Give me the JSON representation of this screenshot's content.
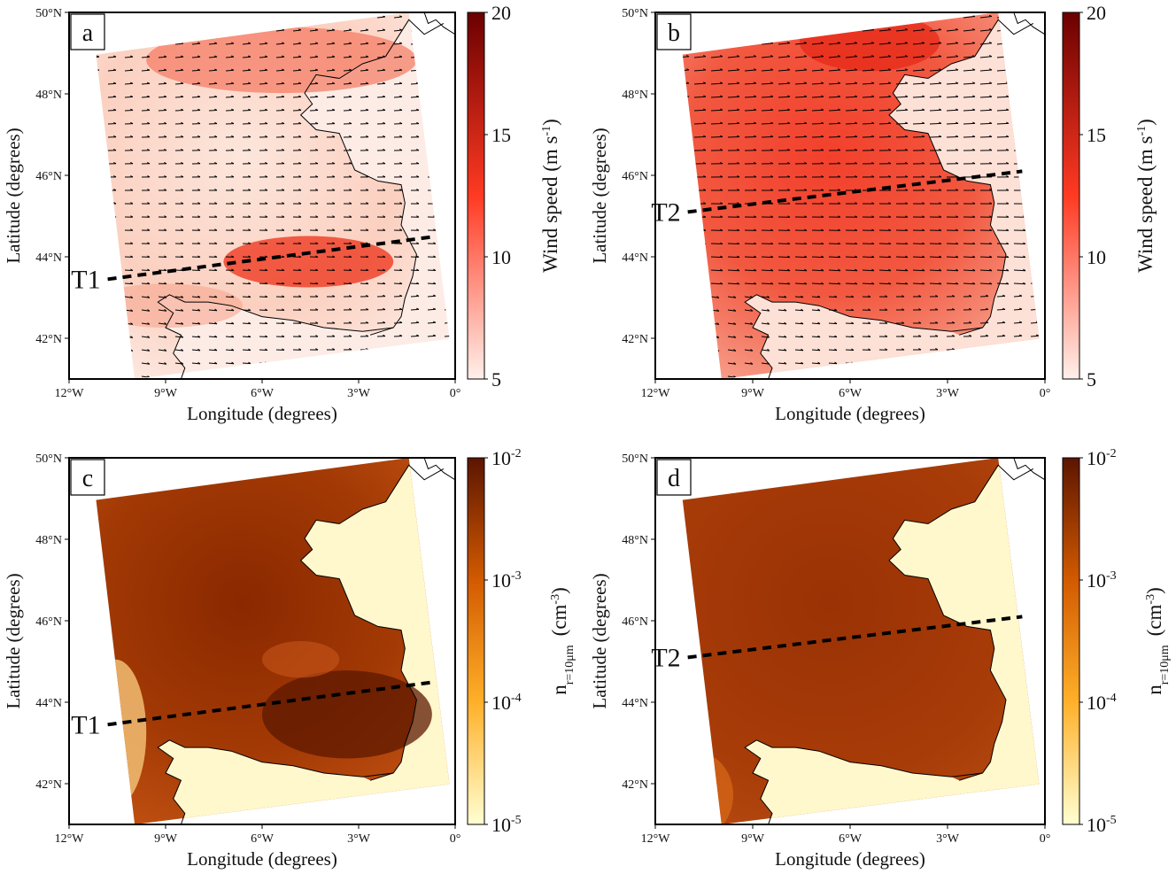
{
  "chart_data": [
    {
      "panel": "a",
      "type": "heatmap",
      "field": "wind",
      "xlabel": "Longitude (degrees)",
      "ylabel": "Latitude (degrees)",
      "xticks": [
        "12°W",
        "9°W",
        "6°W",
        "3°W",
        "0°"
      ],
      "yticks": [
        "42°N",
        "44°N",
        "46°N",
        "48°N",
        "50°N"
      ],
      "xlim": [
        -12,
        0
      ],
      "ylim": [
        41,
        50
      ],
      "colorbar": {
        "label": "Wind speed (m s",
        "label_sup": "-1",
        "label_close": ")",
        "scale": "linear",
        "range": [
          5,
          20
        ],
        "ticks": [
          "5",
          "10",
          "15",
          "20"
        ],
        "colors": [
          "#fff0ea",
          "#ff3a22",
          "#6b0000"
        ]
      },
      "transect": {
        "name": "T1",
        "start": [
          -10.8,
          43.45
        ],
        "end": [
          -0.6,
          44.5
        ]
      },
      "wind_jet_center": [
        -4,
        44
      ],
      "wind_direction": "westerly"
    },
    {
      "panel": "b",
      "type": "heatmap",
      "field": "wind",
      "xlabel": "Longitude (degrees)",
      "ylabel": "Latitude (degrees)",
      "xticks": [
        "12°W",
        "9°W",
        "6°W",
        "3°W",
        "0°"
      ],
      "yticks": [
        "42°N",
        "44°N",
        "46°N",
        "48°N",
        "50°N"
      ],
      "xlim": [
        -12,
        0
      ],
      "ylim": [
        41,
        50
      ],
      "colorbar": {
        "label": "Wind speed (m s",
        "label_sup": "-1",
        "label_close": ")",
        "scale": "linear",
        "range": [
          5,
          20
        ],
        "ticks": [
          "5",
          "10",
          "15",
          "20"
        ],
        "colors": [
          "#fff0ea",
          "#ff3a22",
          "#6b0000"
        ]
      },
      "transect": {
        "name": "T2",
        "start": [
          -11.0,
          45.1
        ],
        "end": [
          -0.7,
          46.1
        ]
      },
      "wind_direction": "westerly"
    },
    {
      "panel": "c",
      "type": "heatmap",
      "field": "aerosol",
      "xlabel": "Longitude (degrees)",
      "ylabel": "Latitude (degrees)",
      "xticks": [
        "12°W",
        "9°W",
        "6°W",
        "3°W",
        "0°"
      ],
      "yticks": [
        "42°N",
        "44°N",
        "46°N",
        "48°N",
        "50°N"
      ],
      "xlim": [
        -12,
        0
      ],
      "ylim": [
        41,
        50
      ],
      "colorbar": {
        "label": "n",
        "label_sub": "r=10μm",
        "unit": "(cm",
        "unit_sup": "-3",
        "unit_close": ")",
        "scale": "log",
        "range": [
          "10-5",
          "10-2"
        ],
        "ticks": [
          [
            "10",
            "-5"
          ],
          [
            "10",
            "-4"
          ],
          [
            "10",
            "-3"
          ],
          [
            "10",
            "-2"
          ]
        ],
        "colors": [
          "#ffffd2",
          "#ffb02a",
          "#d25a00",
          "#5c1500"
        ]
      },
      "transect": {
        "name": "T1",
        "start": [
          -10.8,
          43.45
        ],
        "end": [
          -0.6,
          44.5
        ]
      }
    },
    {
      "panel": "d",
      "type": "heatmap",
      "field": "aerosol",
      "xlabel": "Longitude (degrees)",
      "ylabel": "Latitude (degrees)",
      "xticks": [
        "12°W",
        "9°W",
        "6°W",
        "3°W",
        "0°"
      ],
      "yticks": [
        "42°N",
        "44°N",
        "46°N",
        "48°N",
        "50°N"
      ],
      "xlim": [
        -12,
        0
      ],
      "ylim": [
        41,
        50
      ],
      "colorbar": {
        "label": "n",
        "label_sub": "r=10μm",
        "unit": "(cm",
        "unit_sup": "-3",
        "unit_close": ")",
        "scale": "log",
        "range": [
          "10-5",
          "10-2"
        ],
        "ticks": [
          [
            "10",
            "-5"
          ],
          [
            "10",
            "-4"
          ],
          [
            "10",
            "-3"
          ],
          [
            "10",
            "-2"
          ]
        ],
        "colors": [
          "#ffffd2",
          "#ffb02a",
          "#d25a00",
          "#5c1500"
        ]
      },
      "transect": {
        "name": "T2",
        "start": [
          -11.0,
          45.1
        ],
        "end": [
          -0.7,
          46.1
        ]
      }
    }
  ],
  "colors": {
    "wind_low": "#fff0ea",
    "wind_mid": "#ff3a22",
    "wind_high": "#6b0000",
    "aerosol_low": "#ffffd2",
    "aerosol_mid": "#e06a05",
    "aerosol_high": "#5c1500",
    "coastline": "#000000",
    "transect": "#000000"
  }
}
